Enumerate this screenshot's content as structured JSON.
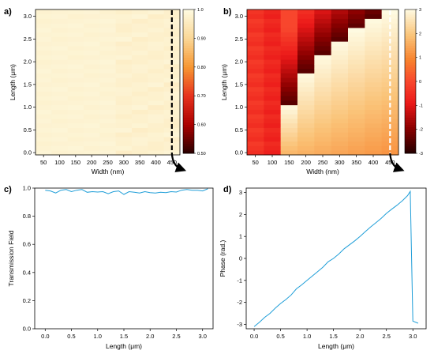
{
  "chart_data": [
    {
      "id": "a",
      "panel_label": "a)",
      "type": "heatmap",
      "xlabel": "Width (nm)",
      "ylabel": "Length (μm)",
      "x_ticks": [
        "50",
        "100",
        "150",
        "200",
        "250",
        "300",
        "350",
        "400",
        "450"
      ],
      "y_ticks": [
        "0.0",
        "0.5",
        "1.0",
        "1.5",
        "2.0",
        "2.5",
        "3.0"
      ],
      "xlim": [
        25,
        475
      ],
      "ylim": [
        -0.05,
        3.15
      ],
      "widths": [
        50,
        100,
        150,
        200,
        250,
        300,
        350,
        400,
        450
      ],
      "lengths": [
        0.0,
        0.1,
        0.2,
        0.3,
        0.4,
        0.5,
        0.6,
        0.7,
        0.8,
        0.9,
        1.0,
        1.1,
        1.2,
        1.3,
        1.4,
        1.5,
        1.6,
        1.7,
        1.8,
        1.9,
        2.0,
        2.1,
        2.2,
        2.3,
        2.4,
        2.5,
        2.6,
        2.7,
        2.8,
        2.9,
        3.0,
        3.1
      ],
      "value_model": "near-uniform transmission ~0.96-1.0 across all widths and lengths",
      "colorbar": {
        "min": 0.5,
        "max": 1.0,
        "ticks": [
          "1.0",
          "0.90",
          "0.80",
          "0.70",
          "0.60",
          "0.50"
        ]
      },
      "marker_width": 450
    },
    {
      "id": "b",
      "panel_label": "b)",
      "type": "heatmap",
      "xlabel": "Width (nm)",
      "ylabel": "Length (μm)",
      "x_ticks": [
        "50",
        "100",
        "150",
        "200",
        "250",
        "300",
        "350",
        "400",
        "450"
      ],
      "y_ticks": [
        "0.0",
        "0.5",
        "1.0",
        "1.5",
        "2.0",
        "2.5",
        "3.0"
      ],
      "xlim": [
        25,
        475
      ],
      "ylim": [
        -0.05,
        3.15
      ],
      "widths": [
        50,
        100,
        150,
        200,
        250,
        300,
        350,
        400,
        450
      ],
      "lengths": [
        0.0,
        0.1,
        0.2,
        0.3,
        0.4,
        0.5,
        0.6,
        0.7,
        0.8,
        0.9,
        1.0,
        1.1,
        1.2,
        1.3,
        1.4,
        1.5,
        1.6,
        1.7,
        1.8,
        1.9,
        2.0,
        2.1,
        2.2,
        2.3,
        2.4,
        2.5,
        2.6,
        2.7,
        2.8,
        2.9,
        3.0,
        3.1
      ],
      "value_model": "phase wraps from +pi to -pi; wrap length decreases with width (about 3.1 um at 450 nm, 1.0 um at 150 nm)",
      "wrap_lengths": [
        6.5,
        4.2,
        1.05,
        1.75,
        2.15,
        2.45,
        2.7,
        2.95,
        3.1
      ],
      "colorbar": {
        "min": -3,
        "max": 3,
        "ticks": [
          "3",
          "2",
          "1",
          "0",
          "-1",
          "-2",
          "-3"
        ]
      },
      "marker_width": 450
    },
    {
      "id": "c",
      "panel_label": "c)",
      "type": "line",
      "xlabel": "Length (μm)",
      "ylabel": "Transmission Field",
      "x_ticks": [
        "0.0",
        "0.5",
        "1.0",
        "1.5",
        "2.0",
        "2.5",
        "3.0"
      ],
      "y_ticks": [
        "0.0",
        "0.2",
        "0.4",
        "0.6",
        "0.8",
        "1.0"
      ],
      "xlim": [
        -0.2,
        3.2
      ],
      "ylim": [
        0.0,
        1.0
      ],
      "line_color": "#1f9ed8",
      "x": [
        0.0,
        0.1,
        0.2,
        0.3,
        0.4,
        0.5,
        0.6,
        0.7,
        0.8,
        0.9,
        1.0,
        1.1,
        1.2,
        1.3,
        1.4,
        1.5,
        1.6,
        1.7,
        1.8,
        1.9,
        2.0,
        2.1,
        2.2,
        2.3,
        2.4,
        2.5,
        2.6,
        2.7,
        2.8,
        2.9,
        3.0,
        3.1
      ],
      "y": [
        0.985,
        0.98,
        0.965,
        0.985,
        0.99,
        0.975,
        0.985,
        0.99,
        0.97,
        0.975,
        0.972,
        0.975,
        0.96,
        0.975,
        0.98,
        0.955,
        0.975,
        0.97,
        0.965,
        0.975,
        0.968,
        0.965,
        0.97,
        0.968,
        0.975,
        0.972,
        0.985,
        0.99,
        0.985,
        0.985,
        0.98,
        0.995
      ]
    },
    {
      "id": "d",
      "panel_label": "d)",
      "type": "line",
      "xlabel": "Length (μm)",
      "ylabel": "Phase (rad.)",
      "x_ticks": [
        "0.0",
        "0.5",
        "1.0",
        "1.5",
        "2.0",
        "2.5",
        "3.0"
      ],
      "y_ticks": [
        "-3",
        "-2",
        "-1",
        "0",
        "1",
        "2",
        "3"
      ],
      "xlim": [
        -0.15,
        3.25
      ],
      "ylim": [
        -3.2,
        3.2
      ],
      "line_color": "#1f9ed8",
      "x": [
        0.0,
        0.1,
        0.2,
        0.3,
        0.4,
        0.5,
        0.6,
        0.7,
        0.8,
        0.9,
        1.0,
        1.1,
        1.2,
        1.3,
        1.4,
        1.5,
        1.6,
        1.7,
        1.8,
        1.9,
        2.0,
        2.1,
        2.2,
        2.3,
        2.4,
        2.5,
        2.6,
        2.7,
        2.8,
        2.9,
        2.95,
        3.0,
        3.1
      ],
      "y": [
        -3.1,
        -2.9,
        -2.68,
        -2.5,
        -2.26,
        -2.05,
        -1.87,
        -1.66,
        -1.38,
        -1.2,
        -1.0,
        -0.8,
        -0.6,
        -0.4,
        -0.15,
        0.0,
        0.2,
        0.44,
        0.62,
        0.8,
        1.0,
        1.22,
        1.43,
        1.62,
        1.82,
        2.05,
        2.24,
        2.42,
        2.62,
        2.86,
        3.05,
        -2.85,
        -2.95
      ]
    }
  ]
}
